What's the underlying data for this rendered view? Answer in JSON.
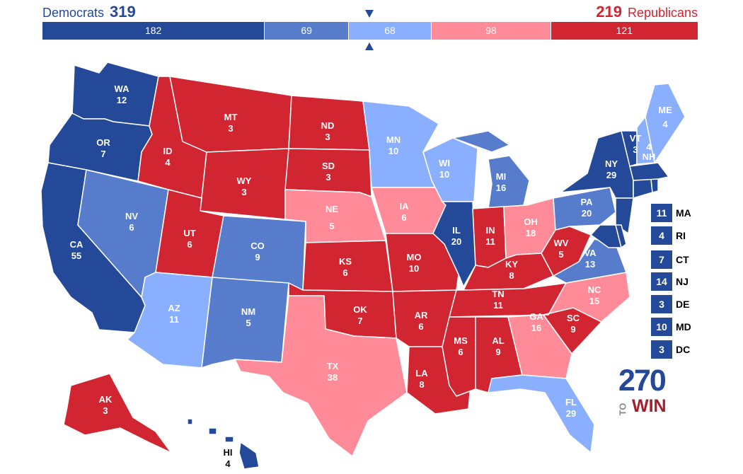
{
  "colors": {
    "safe_dem": "#244999",
    "likely_dem": "#577ccc",
    "lean_dem": "#8aafff",
    "lean_rep": "#ff8b98",
    "likely_rep": "#ff5865",
    "safe_rep": "#d22532",
    "states_stroke": "#ffffff"
  },
  "header": {
    "dem_label": "Democrats",
    "dem_total": "319",
    "rep_total": "219",
    "rep_label": "Republicans"
  },
  "bar": [
    {
      "value": "182",
      "category": "safe_dem",
      "width": 182
    },
    {
      "value": "69",
      "category": "likely_dem",
      "width": 69
    },
    {
      "value": "68",
      "category": "lean_dem",
      "width": 68
    },
    {
      "value": "98",
      "category": "lean_rep",
      "width": 98
    },
    {
      "value": "121",
      "category": "safe_rep",
      "width": 121
    }
  ],
  "threshold_marker": "270",
  "states": {
    "WA": {
      "abbr": "WA",
      "ev": "12"
    },
    "OR": {
      "abbr": "OR",
      "ev": "7"
    },
    "CA": {
      "abbr": "CA",
      "ev": "55"
    },
    "NV": {
      "abbr": "NV",
      "ev": "6"
    },
    "ID": {
      "abbr": "ID",
      "ev": "4"
    },
    "MT": {
      "abbr": "MT",
      "ev": "3"
    },
    "WY": {
      "abbr": "WY",
      "ev": "3"
    },
    "UT": {
      "abbr": "UT",
      "ev": "6"
    },
    "AZ": {
      "abbr": "AZ",
      "ev": "11"
    },
    "CO": {
      "abbr": "CO",
      "ev": "9"
    },
    "NM": {
      "abbr": "NM",
      "ev": "5"
    },
    "ND": {
      "abbr": "ND",
      "ev": "3"
    },
    "SD": {
      "abbr": "SD",
      "ev": "3"
    },
    "NE": {
      "abbr": "NE",
      "ev": "5"
    },
    "KS": {
      "abbr": "KS",
      "ev": "6"
    },
    "OK": {
      "abbr": "OK",
      "ev": "7"
    },
    "TX": {
      "abbr": "TX",
      "ev": "38"
    },
    "MN": {
      "abbr": "MN",
      "ev": "10"
    },
    "IA": {
      "abbr": "IA",
      "ev": "6"
    },
    "MO": {
      "abbr": "MO",
      "ev": "10"
    },
    "AR": {
      "abbr": "AR",
      "ev": "6"
    },
    "LA": {
      "abbr": "LA",
      "ev": "8"
    },
    "WI": {
      "abbr": "WI",
      "ev": "10"
    },
    "IL": {
      "abbr": "IL",
      "ev": "20"
    },
    "MS": {
      "abbr": "MS",
      "ev": "6"
    },
    "MI": {
      "abbr": "MI",
      "ev": "16"
    },
    "IN": {
      "abbr": "IN",
      "ev": "11"
    },
    "KY": {
      "abbr": "KY",
      "ev": "8"
    },
    "TN": {
      "abbr": "TN",
      "ev": "11"
    },
    "AL": {
      "abbr": "AL",
      "ev": "9"
    },
    "OH": {
      "abbr": "OH",
      "ev": "18"
    },
    "WV": {
      "abbr": "WV",
      "ev": "5"
    },
    "VA": {
      "abbr": "VA",
      "ev": "13"
    },
    "NC": {
      "abbr": "NC",
      "ev": "15"
    },
    "SC": {
      "abbr": "SC",
      "ev": "9"
    },
    "GA": {
      "abbr": "GA",
      "ev": "16"
    },
    "FL": {
      "abbr": "FL",
      "ev": "29"
    },
    "PA": {
      "abbr": "PA",
      "ev": "20"
    },
    "NY": {
      "abbr": "NY",
      "ev": "29"
    },
    "VT": {
      "abbr": "VT",
      "ev": "3"
    },
    "NH": {
      "abbr": "NH",
      "ev": "4"
    },
    "ME": {
      "abbr": "ME",
      "ev": "4"
    },
    "AK": {
      "abbr": "AK",
      "ev": "3"
    },
    "HI": {
      "abbr": "HI",
      "ev": "4"
    }
  },
  "small_states": [
    {
      "ev": "11",
      "abbr": "MA"
    },
    {
      "ev": "4",
      "abbr": "RI"
    },
    {
      "ev": "7",
      "abbr": "CT"
    },
    {
      "ev": "14",
      "abbr": "NJ"
    },
    {
      "ev": "3",
      "abbr": "DE"
    },
    {
      "ev": "10",
      "abbr": "MD"
    },
    {
      "ev": "3",
      "abbr": "DC"
    }
  ],
  "logo": {
    "top": "270",
    "middle": "TO",
    "bottom": "WIN"
  }
}
